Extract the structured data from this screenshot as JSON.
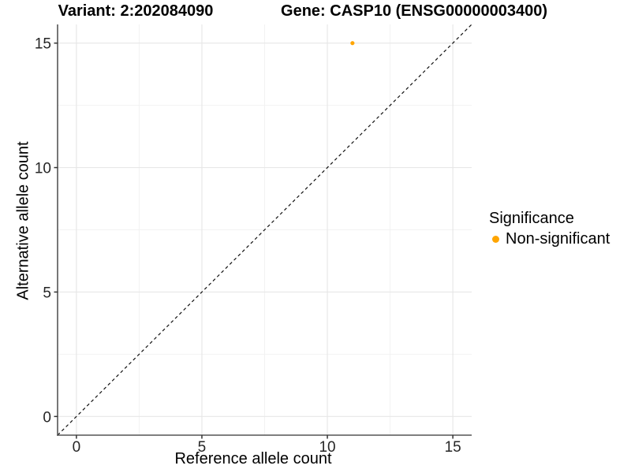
{
  "chart_data": {
    "type": "scatter",
    "titles": [
      "Variant: 2:202084090",
      "Gene: CASP10 (ENSG00000003400)"
    ],
    "xlabel": "Reference allele count",
    "ylabel": "Alternative allele count",
    "xlim": [
      -0.75,
      15.75
    ],
    "ylim": [
      -0.75,
      15.75
    ],
    "xticks": [
      0,
      5,
      10,
      15
    ],
    "yticks": [
      0,
      5,
      10,
      15
    ],
    "xminor": [
      2.5,
      7.5,
      12.5
    ],
    "yminor": [
      2.5,
      7.5,
      12.5
    ],
    "grid": "major and minor gridlines, white panel",
    "identity_line": {
      "style": "dashed",
      "slope": 1,
      "intercept": 0,
      "color": "#111111"
    },
    "series": [
      {
        "name": "Non-significant",
        "color": "#FFA500",
        "points": [
          {
            "x": 11,
            "y": 15
          }
        ]
      }
    ],
    "legend": {
      "title": "Significance",
      "position": "right",
      "items": [
        {
          "label": "Non-significant",
          "color": "#FFA500"
        }
      ]
    },
    "colors": {
      "background": "#FFFFFF",
      "grid_major": "#E7E7E7",
      "grid_minor": "#F2F2F2",
      "axis_line": "#555555",
      "tick_mark": "#333333",
      "tick_label": "#262626",
      "text": "#000000"
    }
  }
}
